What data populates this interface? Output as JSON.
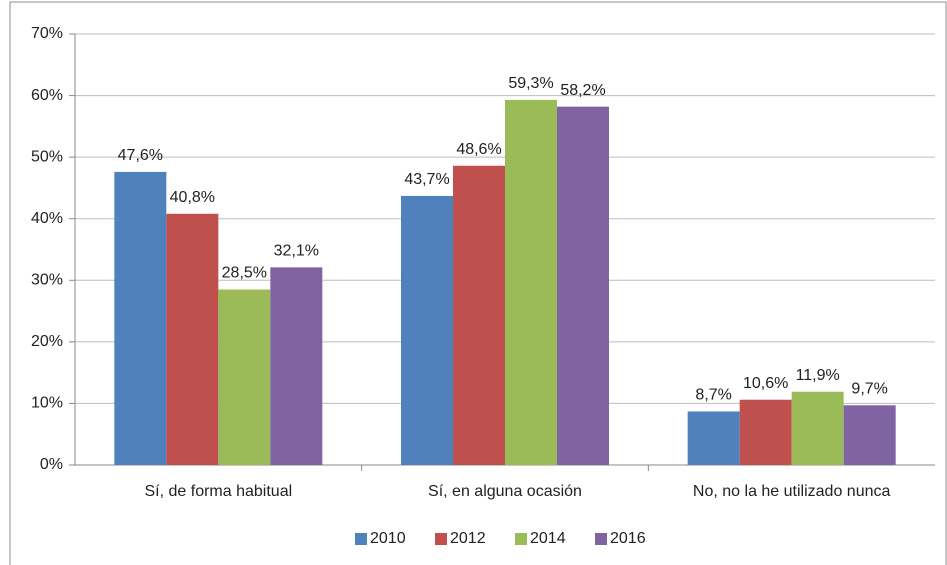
{
  "chart_data": {
    "type": "bar",
    "categories": [
      "Sí, de forma habitual",
      "Sí, en alguna ocasión",
      "No, no la he utilizado nunca"
    ],
    "series": [
      {
        "name": "2010",
        "color": "#4f81bd",
        "values": [
          47.6,
          43.7,
          8.7
        ],
        "value_labels": [
          "47,6%",
          "43,7%",
          "8,7%"
        ]
      },
      {
        "name": "2012",
        "color": "#c0504d",
        "values": [
          40.8,
          48.6,
          10.6
        ],
        "value_labels": [
          "40,8%",
          "48,6%",
          "10,6%"
        ]
      },
      {
        "name": "2014",
        "color": "#9bbb59",
        "values": [
          28.5,
          59.3,
          11.9
        ],
        "value_labels": [
          "28,5%",
          "59,3%",
          "11,9%"
        ]
      },
      {
        "name": "2016",
        "color": "#8064a2",
        "values": [
          32.1,
          58.2,
          9.7
        ],
        "value_labels": [
          "32,1%",
          "58,2%",
          "9,7%"
        ]
      }
    ],
    "ylim": [
      0,
      70
    ],
    "yticks": [
      {
        "value": 0,
        "label": "0%"
      },
      {
        "value": 10,
        "label": "10%"
      },
      {
        "value": 20,
        "label": "20%"
      },
      {
        "value": 30,
        "label": "30%"
      },
      {
        "value": 40,
        "label": "40%"
      },
      {
        "value": 50,
        "label": "50%"
      },
      {
        "value": 60,
        "label": "60%"
      },
      {
        "value": 70,
        "label": "70%"
      }
    ],
    "grid": true,
    "legend": "bottom"
  }
}
